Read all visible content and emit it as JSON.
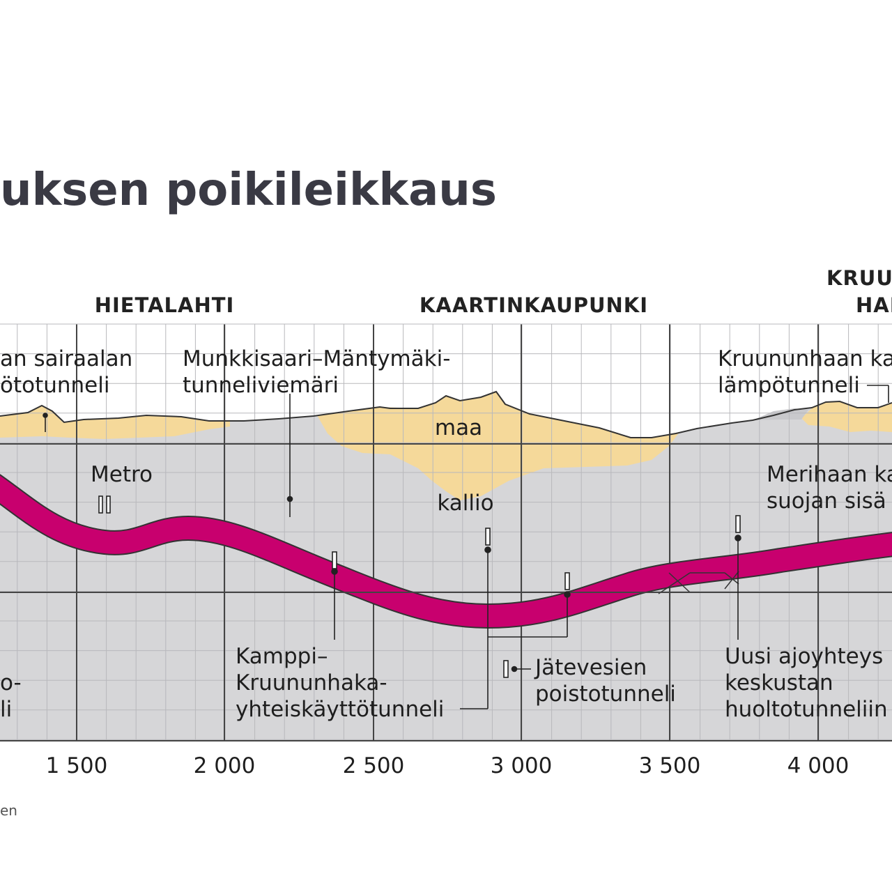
{
  "title": "uksen poikileikkaus",
  "districts": [
    "HIETALAHTI",
    "KAARTINKAUPUNKI",
    "KRUUN",
    "HAK"
  ],
  "layers": {
    "soil": "maa",
    "rock": "kallio"
  },
  "labels": {
    "sairaala_1": "an sairaalan",
    "sairaala_2": "ötotunneli",
    "munkkisaari_1": "Munkkisaari–Mäntymäki-",
    "munkkisaari_2": "tunneliviemäri",
    "kruununhaan_1": "Kruununhaan ka",
    "kruununhaan_2": "lämpötunneli",
    "metro": "Metro",
    "merihaan_1": "Merihaan ka",
    "merihaan_2": "suojan sisä",
    "kamppi_1": "Kamppi–",
    "kamppi_2": "Kruununhaka-",
    "kamppi_3": "yhteiskäyttötunneli",
    "jatevesien_1": "Jätevesien",
    "jatevesien_2": "poistotunneli",
    "uusi_1": "Uusi ajoyhteys",
    "uusi_2": "keskustan",
    "uusi_3": "huoltotunneliin",
    "left_1": "o-",
    "left_2": "li"
  },
  "x_ticks": [
    "1 500",
    "2 000",
    "2 500",
    "3 000",
    "3 500",
    "4 000"
  ],
  "source": "en",
  "colors": {
    "soil": "#f5d99a",
    "rock": "#d6d6d8",
    "tunnel": "#c8006e",
    "grid": "#b8b8bc",
    "major": "#444444"
  }
}
